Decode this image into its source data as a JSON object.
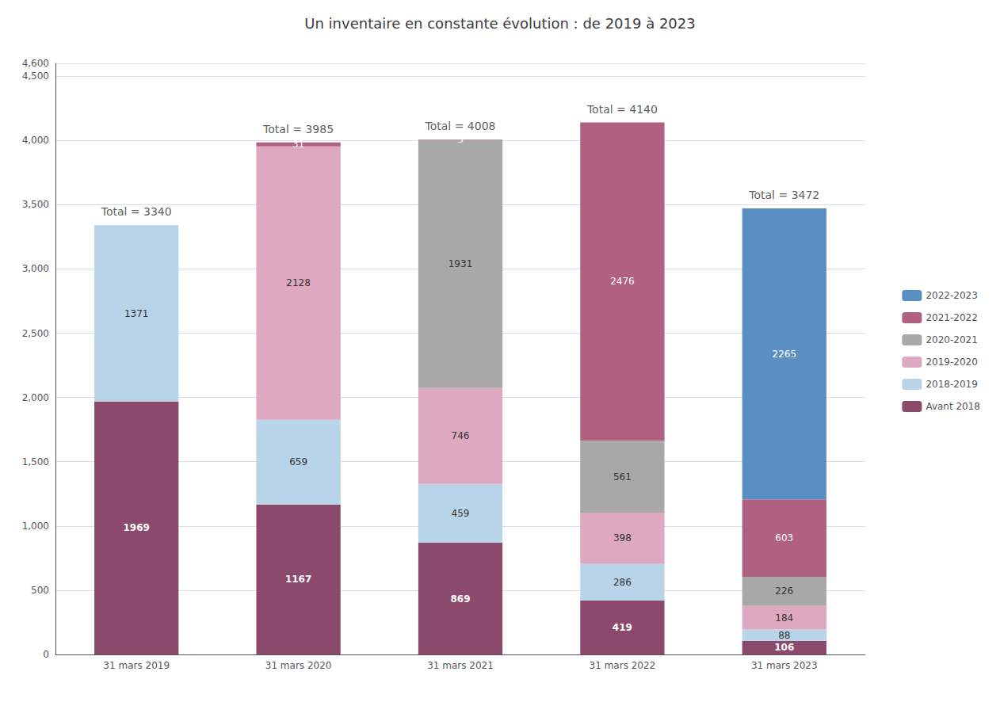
{
  "chart_data": {
    "type": "bar",
    "title": "Un inventaire en constante évolution : de 2019 à 2023",
    "categories": [
      "31 mars 2019",
      "31 mars 2020",
      "31 mars 2021",
      "31 mars 2022",
      "31 mars 2023"
    ],
    "series": [
      {
        "name": "Avant 2018",
        "color": "#8B4A6B",
        "values": [
          1969,
          1167,
          869,
          419,
          106
        ]
      },
      {
        "name": "2018-2019",
        "color": "#B8D4E8",
        "values": [
          1371,
          659,
          459,
          286,
          88
        ]
      },
      {
        "name": "2019-2020",
        "color": "#DDA8C0",
        "values": [
          0,
          2128,
          746,
          398,
          184
        ]
      },
      {
        "name": "2020-2021",
        "color": "#A8A8A8",
        "values": [
          0,
          0,
          1931,
          561,
          226
        ]
      },
      {
        "name": "2021-2022",
        "color": "#B06080",
        "values": [
          0,
          31,
          3,
          2476,
          603
        ]
      },
      {
        "name": "2022-2023",
        "color": "#5B8EC2",
        "values": [
          0,
          0,
          0,
          0,
          2265
        ]
      }
    ],
    "annotations": [
      {
        "text": "Total = 3340",
        "x": "31 mars 2019"
      },
      {
        "text": "Total = 3985",
        "x": "31 mars 2020"
      },
      {
        "text": "Total = 4008",
        "x": "31 mars 2021"
      },
      {
        "text": "Total = 4140",
        "x": "31 mars 2022"
      },
      {
        "text": "Total = 3472",
        "x": "31 mars 2023"
      }
    ],
    "stacked": true,
    "data_labels": true,
    "ylim": [
      0,
      4600
    ],
    "yticks": [
      0,
      500,
      1000,
      1500,
      2000,
      2500,
      3000,
      3500,
      4000,
      4500
    ],
    "grid": true,
    "legend": "right"
  }
}
